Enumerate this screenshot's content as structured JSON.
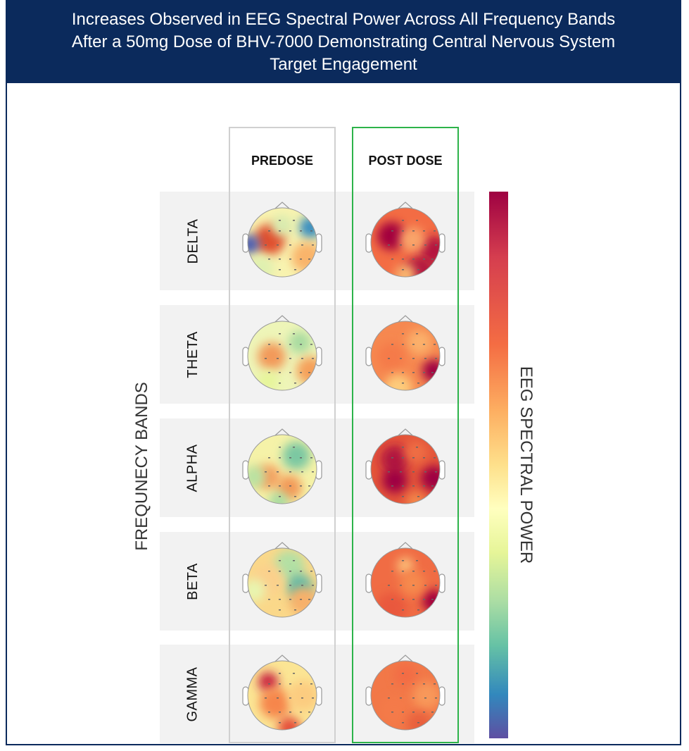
{
  "title_lines": [
    "Increases Observed in EEG Spectral Power Across All Frequency Bands",
    "After a 50mg Dose of BHV-7000 Demonstrating Central Nervous System",
    "Target Engagement"
  ],
  "columns": [
    "PREDOSE",
    "POST DOSE"
  ],
  "rows": [
    "DELTA",
    "THETA",
    "ALPHA",
    "BETA",
    "GAMMA"
  ],
  "y_axis_label": "FREQUNECY BANDS",
  "colorbar_label": "EEG SPECTRAL POWER",
  "colors": {
    "banner": "#0b2a5c",
    "post_dose_border": "#2db34a",
    "predose_border": "#d0d0d0",
    "colormap": [
      "#9e0142",
      "#f46d43",
      "#fee08b",
      "#ffffbf",
      "#abdda4",
      "#3288bd",
      "#5e4fa2"
    ]
  },
  "colorbar_direction": "high power at top (red), low at bottom (purple)"
}
